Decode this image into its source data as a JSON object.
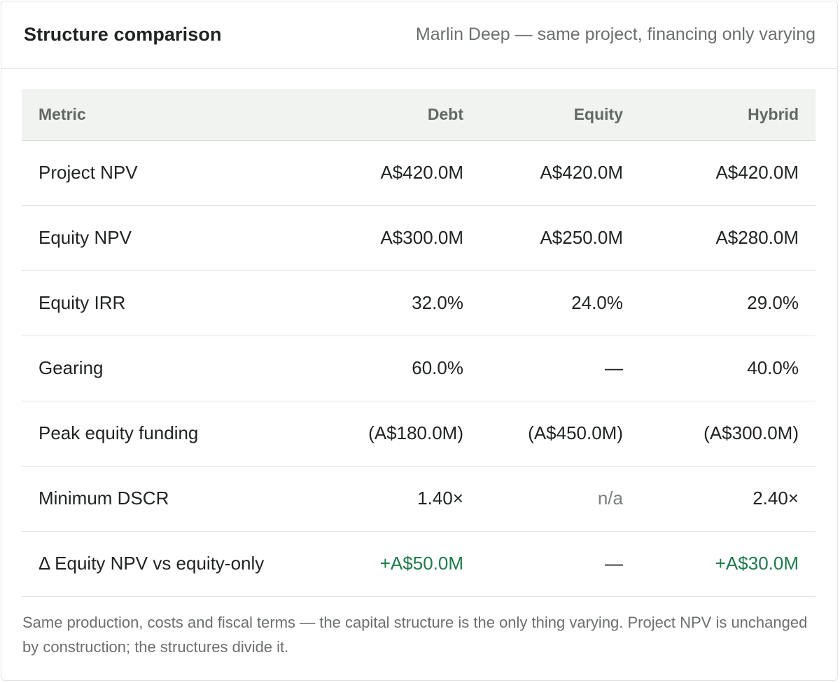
{
  "header": {
    "title": "Structure comparison",
    "subtitle": "Marlin Deep — same project, financing only varying"
  },
  "table": {
    "columns": [
      "Metric",
      "Debt",
      "Equity",
      "Hybrid"
    ],
    "rows": [
      {
        "metric": "Project NPV",
        "debt": "A$420.0M",
        "equity": "A$420.0M",
        "hybrid": "A$420.0M"
      },
      {
        "metric": "Equity NPV",
        "debt": "A$300.0M",
        "equity": "A$250.0M",
        "hybrid": "A$280.0M"
      },
      {
        "metric": "Equity IRR",
        "debt": "32.0%",
        "equity": "24.0%",
        "hybrid": "29.0%"
      },
      {
        "metric": "Gearing",
        "debt": "60.0%",
        "equity": "—",
        "hybrid": "40.0%"
      },
      {
        "metric": "Peak equity funding",
        "debt": "(A$180.0M)",
        "equity": "(A$450.0M)",
        "hybrid": "(A$300.0M)"
      },
      {
        "metric": "Minimum DSCR",
        "debt": "1.40×",
        "equity": "n/a",
        "hybrid": "2.40×"
      },
      {
        "metric": "Δ Equity NPV vs equity-only",
        "debt": "+A$50.0M",
        "equity": "—",
        "hybrid": "+A$30.0M"
      }
    ]
  },
  "footnote": "Same production, costs and fiscal terms — the capital structure is the only thing varying. Project NPV is unchanged by construction; the structures divide it.",
  "colors": {
    "positive": "#1f7a4a",
    "muted": "#7b807c",
    "header_bg": "#f0f3ef"
  }
}
